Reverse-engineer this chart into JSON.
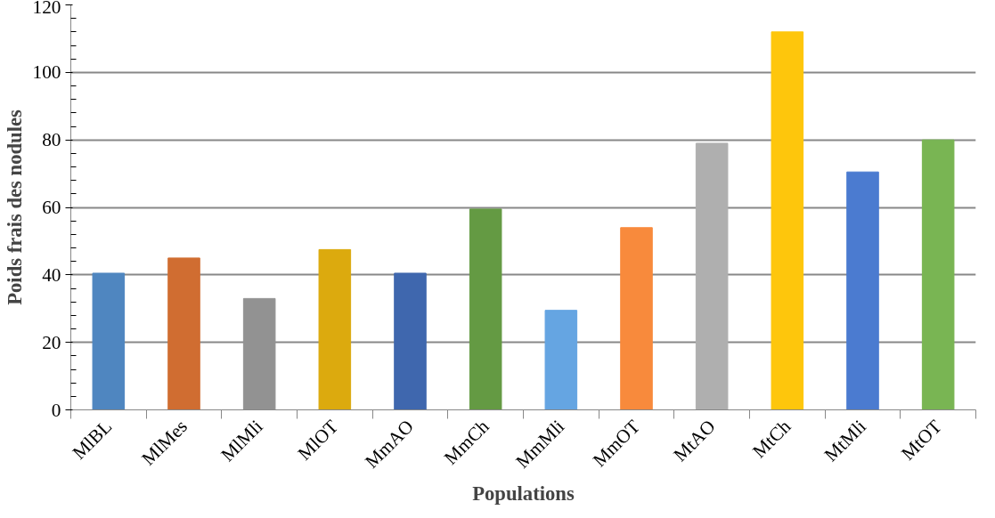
{
  "chart_data": {
    "type": "bar",
    "xlabel": "Populations",
    "ylabel": "Poids frais des nodules",
    "categories": [
      "MlBL",
      "MlMes",
      "MlMli",
      "MlOT",
      "MmAO",
      "MmCh",
      "MmMli",
      "MmOT",
      "MtAO",
      "MtCh",
      "MtMli",
      "MtOT"
    ],
    "values": [
      40.5,
      45,
      33,
      47.5,
      40.5,
      59.5,
      29.5,
      54,
      79,
      112,
      70.5,
      80
    ],
    "colors": [
      "#4f86c0",
      "#d06d31",
      "#929292",
      "#dcaa0e",
      "#3f67ae",
      "#649a43",
      "#65a5e2",
      "#f88a3c",
      "#afafaf",
      "#fec60c",
      "#4b7bd0",
      "#79b553"
    ],
    "ylim": [
      0,
      120
    ],
    "yticks": [
      0,
      20,
      40,
      60,
      80,
      100,
      120
    ],
    "grid": "y"
  }
}
